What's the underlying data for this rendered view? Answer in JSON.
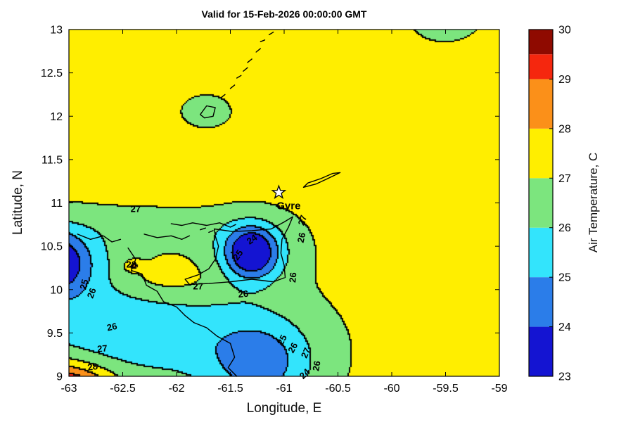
{
  "chart_data": {
    "type": "contour",
    "title": "Valid for 15-Feb-2026 00:00:00 GMT",
    "xlabel": "Longitude, E",
    "ylabel": "Latitude, N",
    "xlim": [
      -63,
      -59
    ],
    "ylim": [
      9,
      13
    ],
    "xtick_values": [
      -63,
      -62.5,
      -62,
      -61.5,
      -61,
      -60.5,
      -60,
      -59.5,
      -59
    ],
    "xtick_labels": [
      "-63",
      "-62.5",
      "-62",
      "-61.5",
      "-61",
      "-60.5",
      "-60",
      "-59.5",
      "-59"
    ],
    "ytick_values": [
      9,
      9.5,
      10,
      10.5,
      11,
      11.5,
      12,
      12.5,
      13
    ],
    "ytick_labels": [
      "9",
      "9.5",
      "10",
      "10.5",
      "11",
      "11.5",
      "12",
      "12.5",
      "13"
    ],
    "grid": false,
    "colorbar": {
      "label": "Air Temperature, C",
      "tick_values": [
        23,
        24,
        25,
        26,
        27,
        28,
        29,
        30
      ],
      "tick_labels": [
        "23",
        "24",
        "25",
        "26",
        "27",
        "28",
        "29",
        "30"
      ],
      "range": [
        23,
        30
      ],
      "band_edges": [
        23,
        24,
        25,
        26,
        27,
        28,
        29,
        29.5,
        30
      ],
      "band_colors": [
        "#1414D2",
        "#2B7DE9",
        "#33E4FC",
        "#7CE57E",
        "#FFEE00",
        "#FB9019",
        "#F5270E",
        "#8F0A00"
      ]
    },
    "contour_levels": [
      23,
      24,
      25,
      26,
      27,
      28,
      29,
      30
    ],
    "field": {
      "base": 27.3,
      "bumps": [
        {
          "name": "west-cool-core",
          "x": -63.15,
          "y": 10.32,
          "amp": -3.2,
          "sx": 0.22,
          "sy": 0.25
        },
        {
          "name": "west-cool-broad",
          "x": -63.1,
          "y": 10.3,
          "amp": -1.6,
          "sx": 0.45,
          "sy": 0.35
        },
        {
          "name": "paria-green-corridor",
          "x": -62.15,
          "y": 10.72,
          "amp": -0.7,
          "sx": 0.55,
          "sy": 0.16
        },
        {
          "name": "trinidad-cool-core",
          "x": -61.3,
          "y": 10.42,
          "amp": -3.4,
          "sx": 0.16,
          "sy": 0.2
        },
        {
          "name": "trinidad-cool-broad",
          "x": -61.28,
          "y": 10.45,
          "amp": -1.6,
          "sx": 0.3,
          "sy": 0.28
        },
        {
          "name": "south-cool-core",
          "x": -61.2,
          "y": 9.12,
          "amp": -1.9,
          "sx": 0.32,
          "sy": 0.35
        },
        {
          "name": "south-cool-broad",
          "x": -61.3,
          "y": 9.3,
          "amp": -0.9,
          "sx": 0.55,
          "sy": 0.5
        },
        {
          "name": "southwest-cool-band",
          "x": -62.5,
          "y": 9.5,
          "amp": -1.9,
          "sx": 0.75,
          "sy": 0.42
        },
        {
          "name": "southwest-warm-corner",
          "x": -63.05,
          "y": 8.82,
          "amp": 4.0,
          "sx": 0.3,
          "sy": 0.22
        },
        {
          "name": "warm-spot-28",
          "x": -62.4,
          "y": 10.27,
          "amp": 1.4,
          "sx": 0.055,
          "sy": 0.045
        },
        {
          "name": "gulf-warm-tongue",
          "x": -62.1,
          "y": 10.12,
          "amp": 0.75,
          "sx": 0.35,
          "sy": 0.16
        },
        {
          "name": "grenada-cool-patch",
          "x": -61.72,
          "y": 12.05,
          "amp": -0.85,
          "sx": 0.16,
          "sy": 0.13
        },
        {
          "name": "northeast-cool-patch",
          "x": -59.5,
          "y": 13.12,
          "amp": -0.9,
          "sx": 0.22,
          "sy": 0.18
        }
      ]
    },
    "marker": {
      "label": "Gyre",
      "x": -61.05,
      "y": 11.12,
      "symbol": "star",
      "label_offset": [
        14,
        20
      ]
    },
    "contour_labels": [
      {
        "t": "27",
        "x": -62.38,
        "y": 10.93,
        "r": 0
      },
      {
        "t": "27",
        "x": -60.83,
        "y": 10.8,
        "r": -72
      },
      {
        "t": "24",
        "x": -61.3,
        "y": 10.58,
        "r": -35
      },
      {
        "t": "25",
        "x": -61.43,
        "y": 10.4,
        "r": -55
      },
      {
        "t": "26",
        "x": -61.38,
        "y": 9.95,
        "r": -5
      },
      {
        "t": "26",
        "x": -60.92,
        "y": 10.14,
        "r": -85
      },
      {
        "t": "26",
        "x": -60.84,
        "y": 10.6,
        "r": -78
      },
      {
        "t": "27",
        "x": -61.8,
        "y": 10.04,
        "r": 0
      },
      {
        "t": "28",
        "x": -62.42,
        "y": 10.29,
        "r": 0
      },
      {
        "t": "25",
        "x": -62.86,
        "y": 10.06,
        "r": -75
      },
      {
        "t": "26",
        "x": -62.79,
        "y": 9.96,
        "r": -70
      },
      {
        "t": "26",
        "x": -62.6,
        "y": 9.57,
        "r": -12
      },
      {
        "t": "27",
        "x": -62.69,
        "y": 9.32,
        "r": -5
      },
      {
        "t": "28",
        "x": -62.78,
        "y": 9.11,
        "r": -8
      },
      {
        "t": "25",
        "x": -61.02,
        "y": 9.42,
        "r": -62
      },
      {
        "t": "26",
        "x": -60.92,
        "y": 9.33,
        "r": -62
      },
      {
        "t": "27",
        "x": -60.8,
        "y": 9.27,
        "r": -66
      },
      {
        "t": "26",
        "x": -60.7,
        "y": 9.12,
        "r": -80
      },
      {
        "t": "24",
        "x": -60.81,
        "y": 9.03,
        "r": -45
      }
    ],
    "coastlines": [
      {
        "name": "trinidad",
        "points": [
          [
            -61.65,
            10.7
          ],
          [
            -61.48,
            10.67
          ],
          [
            -61.3,
            10.68
          ],
          [
            -61.12,
            10.7
          ],
          [
            -61.0,
            10.78
          ],
          [
            -60.92,
            10.84
          ],
          [
            -60.96,
            10.72
          ],
          [
            -61.02,
            10.58
          ],
          [
            -61.03,
            10.42
          ],
          [
            -61.0,
            10.28
          ],
          [
            -60.99,
            10.14
          ],
          [
            -61.1,
            10.09
          ],
          [
            -61.3,
            10.12
          ],
          [
            -61.5,
            10.09
          ],
          [
            -61.7,
            10.07
          ],
          [
            -61.88,
            10.06
          ],
          [
            -61.92,
            10.12
          ],
          [
            -61.8,
            10.17
          ],
          [
            -61.7,
            10.24
          ],
          [
            -61.64,
            10.35
          ],
          [
            -61.61,
            10.5
          ],
          [
            -61.64,
            10.62
          ],
          [
            -61.65,
            10.7
          ]
        ]
      },
      {
        "name": "paria-peninsula-north",
        "points": [
          [
            -62.05,
            10.76
          ],
          [
            -61.95,
            10.74
          ],
          [
            -61.85,
            10.77
          ],
          [
            -61.72,
            10.74
          ],
          [
            -61.6,
            10.77
          ],
          [
            -61.5,
            10.72
          ],
          [
            -61.45,
            10.75
          ]
        ]
      },
      {
        "name": "paria-peninsula-south",
        "points": [
          [
            -62.3,
            10.64
          ],
          [
            -62.18,
            10.6
          ],
          [
            -62.05,
            10.62
          ],
          [
            -61.95,
            10.58
          ],
          [
            -61.88,
            10.62
          ]
        ]
      },
      {
        "name": "venezuela-west-coast",
        "points": [
          [
            -62.92,
            10.64
          ],
          [
            -62.8,
            10.58
          ],
          [
            -62.68,
            10.62
          ],
          [
            -62.6,
            10.55
          ],
          [
            -62.52,
            10.58
          ]
        ]
      },
      {
        "name": "orinoco-delta-coast",
        "points": [
          [
            -62.45,
            10.48
          ],
          [
            -62.38,
            10.35
          ],
          [
            -62.42,
            10.22
          ],
          [
            -62.32,
            10.18
          ],
          [
            -62.28,
            10.05
          ],
          [
            -62.18,
            9.98
          ],
          [
            -62.12,
            9.86
          ],
          [
            -62.0,
            9.8
          ],
          [
            -61.92,
            9.7
          ],
          [
            -61.84,
            9.62
          ],
          [
            -61.72,
            9.56
          ],
          [
            -61.62,
            9.46
          ],
          [
            -61.5,
            9.38
          ],
          [
            -61.46,
            9.22
          ],
          [
            -61.52,
            9.1
          ],
          [
            -61.44,
            9.0
          ]
        ]
      },
      {
        "name": "tobago",
        "points": [
          [
            -60.82,
            11.18
          ],
          [
            -60.7,
            11.22
          ],
          [
            -60.58,
            11.29
          ],
          [
            -60.48,
            11.35
          ],
          [
            -60.55,
            11.34
          ],
          [
            -60.66,
            11.28
          ],
          [
            -60.78,
            11.23
          ],
          [
            -60.82,
            11.18
          ]
        ]
      },
      {
        "name": "grenada",
        "points": [
          [
            -61.78,
            12.02
          ],
          [
            -61.72,
            12.12
          ],
          [
            -61.64,
            12.1
          ],
          [
            -61.66,
            12.0
          ],
          [
            -61.74,
            11.98
          ],
          [
            -61.78,
            12.02
          ]
        ]
      },
      {
        "name": "islet-1",
        "points": [
          [
            -61.78,
            10.69
          ],
          [
            -61.73,
            10.71
          ]
        ]
      },
      {
        "name": "islet-2",
        "points": [
          [
            -61.7,
            10.66
          ],
          [
            -61.66,
            10.68
          ]
        ]
      },
      {
        "name": "grenadines-1",
        "points": [
          [
            -61.58,
            12.22
          ],
          [
            -61.55,
            12.25
          ]
        ]
      },
      {
        "name": "grenadines-2",
        "points": [
          [
            -61.5,
            12.32
          ],
          [
            -61.46,
            12.36
          ]
        ]
      },
      {
        "name": "grenadines-3",
        "points": [
          [
            -61.44,
            12.44
          ],
          [
            -61.4,
            12.47
          ]
        ]
      },
      {
        "name": "grenadines-4",
        "points": [
          [
            -61.38,
            12.52
          ],
          [
            -61.34,
            12.56
          ]
        ]
      },
      {
        "name": "grenadines-5",
        "points": [
          [
            -61.34,
            12.62
          ],
          [
            -61.3,
            12.66
          ]
        ]
      },
      {
        "name": "grenadines-6",
        "points": [
          [
            -61.26,
            12.74
          ],
          [
            -61.22,
            12.78
          ]
        ]
      },
      {
        "name": "grenadines-7",
        "points": [
          [
            -61.22,
            12.86
          ],
          [
            -61.18,
            12.88
          ]
        ]
      },
      {
        "name": "grenadines-8",
        "points": [
          [
            -61.14,
            12.94
          ],
          [
            -61.1,
            12.97
          ]
        ]
      }
    ]
  }
}
